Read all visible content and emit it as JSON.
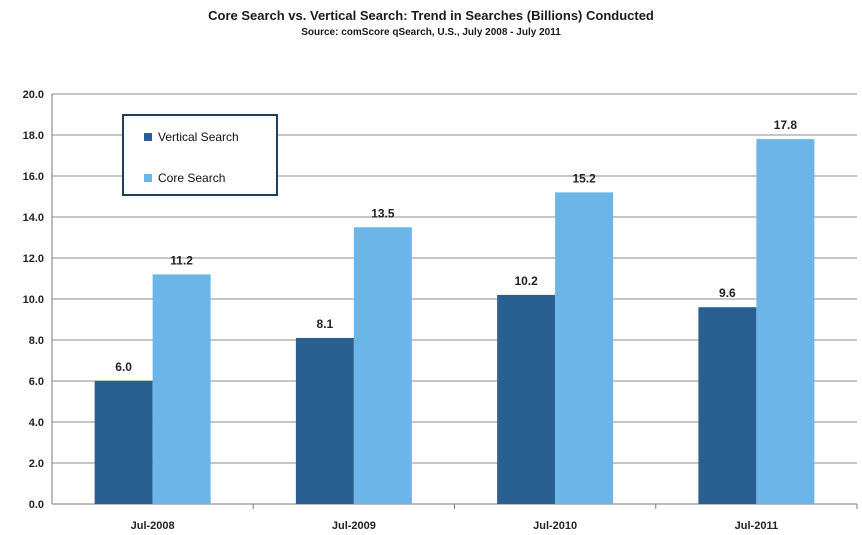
{
  "chart_data": {
    "type": "bar",
    "title": "Core Search vs. Vertical Search: Trend in Searches (Billions) Conducted",
    "subtitle": "Source: comScore qSearch, U.S., July 2008 - July 2011",
    "categories": [
      "Jul-2008",
      "Jul-2009",
      "Jul-2010",
      "Jul-2011"
    ],
    "series": [
      {
        "name": "Vertical Search",
        "values": [
          6.0,
          8.1,
          10.2,
          9.6
        ],
        "labels": [
          "6.0",
          "8.1",
          "10.2",
          "9.6"
        ],
        "color": "#2a5f91"
      },
      {
        "name": "Core Search",
        "values": [
          11.2,
          13.5,
          15.2,
          17.8
        ],
        "labels": [
          "11.2",
          "13.5",
          "15.2",
          "17.8"
        ],
        "color": "#6bb5e8"
      }
    ],
    "ylim": [
      0,
      20
    ],
    "yticks": [
      "0.0",
      "2.0",
      "4.0",
      "6.0",
      "8.0",
      "10.0",
      "12.0",
      "14.0",
      "16.0",
      "18.0",
      "20.0"
    ],
    "grid": true,
    "legend_position": "top-left"
  }
}
